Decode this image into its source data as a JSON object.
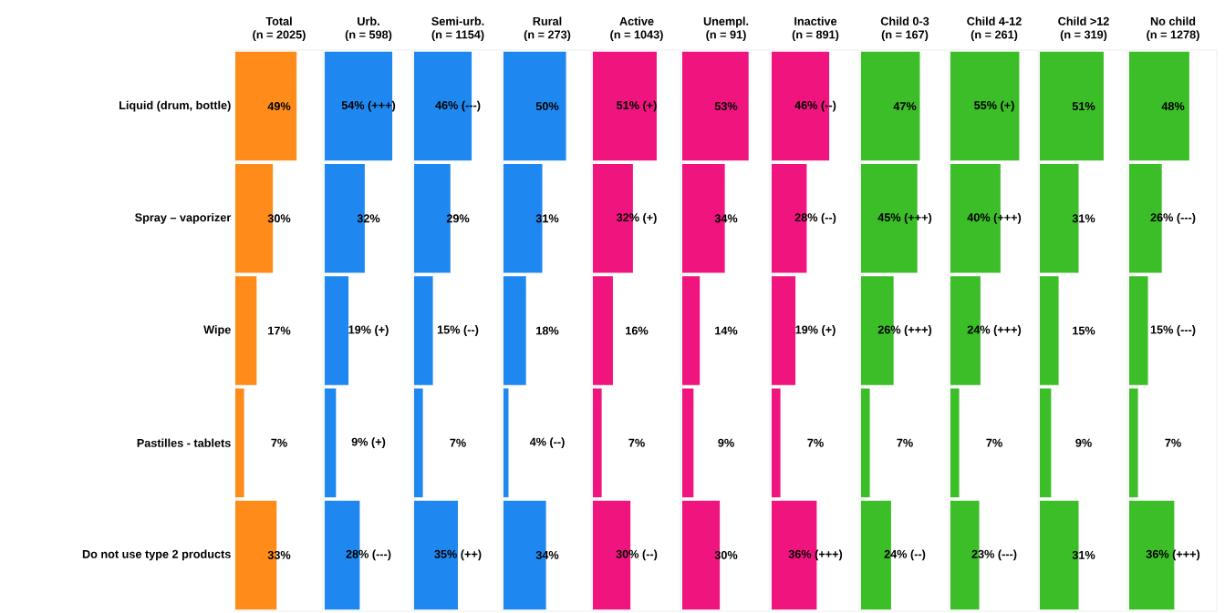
{
  "chart_data": [
    {
      "type": "bar",
      "orientation": "horizontal",
      "title": "Total",
      "subtitle": "(n = 2025)",
      "categories": [
        "Liquid (drum, bottle)",
        "Spray – vaporizer",
        "Wipe",
        "Pastilles - tablets",
        "Do not use type 2 products"
      ],
      "values": [
        49,
        30,
        17,
        7,
        33
      ],
      "value_labels": [
        "49%",
        "30%",
        "17%",
        "7%",
        "33%"
      ],
      "color": "#ff8c1a",
      "xlim": [
        0,
        70
      ],
      "tick_labels": "y"
    },
    {
      "type": "bar",
      "orientation": "horizontal",
      "title": "Urb.",
      "subtitle": "(n = 598)",
      "categories": [
        null,
        null,
        null,
        null,
        null
      ],
      "values": [
        54,
        32,
        19,
        9,
        28
      ],
      "value_labels": [
        "54% (+++)",
        "32%",
        "19% (+)",
        "9% (+)",
        "28% (---)"
      ],
      "color": "#1e88f0",
      "xlim": [
        0,
        70
      ],
      "tick_labels": false
    },
    {
      "type": "bar",
      "orientation": "horizontal",
      "title": "Semi-urb.",
      "subtitle": "(n = 1154)",
      "categories": [
        null,
        null,
        null,
        null,
        null
      ],
      "values": [
        46,
        29,
        15,
        7,
        35
      ],
      "value_labels": [
        "46% (---)",
        "29%",
        "15% (--)",
        "7%",
        "35% (++)"
      ],
      "color": "#1e88f0",
      "xlim": [
        0,
        70
      ],
      "tick_labels": false
    },
    {
      "type": "bar",
      "orientation": "horizontal",
      "title": "Rural",
      "subtitle": "(n = 273)",
      "categories": [
        null,
        null,
        null,
        null,
        null
      ],
      "values": [
        50,
        31,
        18,
        4,
        34
      ],
      "value_labels": [
        "50%",
        "31%",
        "18%",
        "4% (--)",
        "34%"
      ],
      "color": "#1e88f0",
      "xlim": [
        0,
        70
      ],
      "tick_labels": false
    },
    {
      "type": "bar",
      "orientation": "horizontal",
      "title": "Active",
      "subtitle": "(n = 1043)",
      "categories": [
        null,
        null,
        null,
        null,
        null
      ],
      "values": [
        51,
        32,
        16,
        7,
        30
      ],
      "value_labels": [
        "51% (+)",
        "32% (+)",
        "16%",
        "7%",
        "30% (--)"
      ],
      "color": "#f0147f",
      "xlim": [
        0,
        70
      ],
      "tick_labels": false
    },
    {
      "type": "bar",
      "orientation": "horizontal",
      "title": "Unempl.",
      "subtitle": "(n = 91)",
      "categories": [
        null,
        null,
        null,
        null,
        null
      ],
      "values": [
        53,
        34,
        14,
        9,
        30
      ],
      "value_labels": [
        "53%",
        "34%",
        "14%",
        "9%",
        "30%"
      ],
      "color": "#f0147f",
      "xlim": [
        0,
        70
      ],
      "tick_labels": false
    },
    {
      "type": "bar",
      "orientation": "horizontal",
      "title": "Inactive",
      "subtitle": "(n = 891)",
      "categories": [
        null,
        null,
        null,
        null,
        null
      ],
      "values": [
        46,
        28,
        19,
        7,
        36
      ],
      "value_labels": [
        "46% (--)",
        "28% (--)",
        "19% (+)",
        "7%",
        "36% (+++)"
      ],
      "color": "#f0147f",
      "xlim": [
        0,
        70
      ],
      "tick_labels": false
    },
    {
      "type": "bar",
      "orientation": "horizontal",
      "title": "Child 0-3",
      "subtitle": "(n = 167)",
      "categories": [
        null,
        null,
        null,
        null,
        null
      ],
      "values": [
        47,
        45,
        26,
        7,
        24
      ],
      "value_labels": [
        "47%",
        "45% (+++)",
        "26% (+++)",
        "7%",
        "24% (--)"
      ],
      "color": "#3cbe28",
      "xlim": [
        0,
        70
      ],
      "tick_labels": false
    },
    {
      "type": "bar",
      "orientation": "horizontal",
      "title": "Child 4-12",
      "subtitle": "(n = 261)",
      "categories": [
        null,
        null,
        null,
        null,
        null
      ],
      "values": [
        55,
        40,
        24,
        7,
        23
      ],
      "value_labels": [
        "55% (+)",
        "40% (+++)",
        "24% (+++)",
        "7%",
        "23% (---)"
      ],
      "color": "#3cbe28",
      "xlim": [
        0,
        70
      ],
      "tick_labels": false
    },
    {
      "type": "bar",
      "orientation": "horizontal",
      "title": "Child >12",
      "subtitle": "(n = 319)",
      "categories": [
        null,
        null,
        null,
        null,
        null
      ],
      "values": [
        51,
        31,
        15,
        9,
        31
      ],
      "value_labels": [
        "51%",
        "31%",
        "15%",
        "9%",
        "31%"
      ],
      "color": "#3cbe28",
      "xlim": [
        0,
        70
      ],
      "tick_labels": false
    },
    {
      "type": "bar",
      "orientation": "horizontal",
      "title": "No child",
      "subtitle": "(n = 1278)",
      "categories": [
        null,
        null,
        null,
        null,
        null
      ],
      "values": [
        48,
        26,
        15,
        7,
        36
      ],
      "value_labels": [
        "48%",
        "26% (---)",
        "15% (---)",
        "7%",
        "36% (+++)"
      ],
      "color": "#3cbe28",
      "xlim": [
        0,
        70
      ],
      "tick_labels": false
    }
  ]
}
